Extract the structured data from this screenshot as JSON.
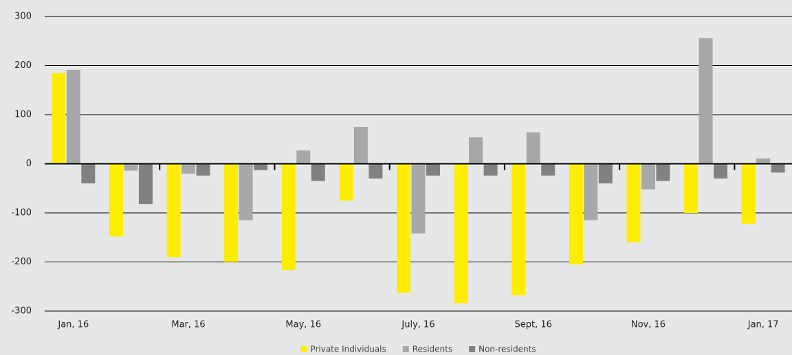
{
  "chart_data": {
    "type": "bar",
    "categories": [
      "Jan, 16",
      null,
      "Mar, 16",
      null,
      "May, 16",
      null,
      "July, 16",
      null,
      "Sept, 16",
      null,
      "Nov, 16",
      null,
      "Jan, 17"
    ],
    "series": [
      {
        "name": "Private Individuals",
        "color": "#ffed00",
        "values": [
          185,
          -148,
          -190,
          -200,
          -216,
          -75,
          -263,
          -284,
          -268,
          -205,
          -160,
          -100,
          -122
        ]
      },
      {
        "name": "Residents",
        "color": "#a7a8aa",
        "values": [
          191,
          -14,
          -20,
          -115,
          27,
          75,
          -142,
          54,
          64,
          -115,
          -52,
          256,
          11
        ]
      },
      {
        "name": "Non-residents",
        "color": "#808183",
        "values": [
          -40,
          -82,
          -24,
          -13,
          -35,
          -30,
          -24,
          -24,
          -24,
          -40,
          -35,
          -30,
          -18
        ]
      }
    ],
    "ylim": [
      -300,
      300
    ],
    "yticks": [
      -300,
      -200,
      -100,
      0,
      100,
      200,
      300
    ],
    "grid": true,
    "legend": "bottom"
  }
}
